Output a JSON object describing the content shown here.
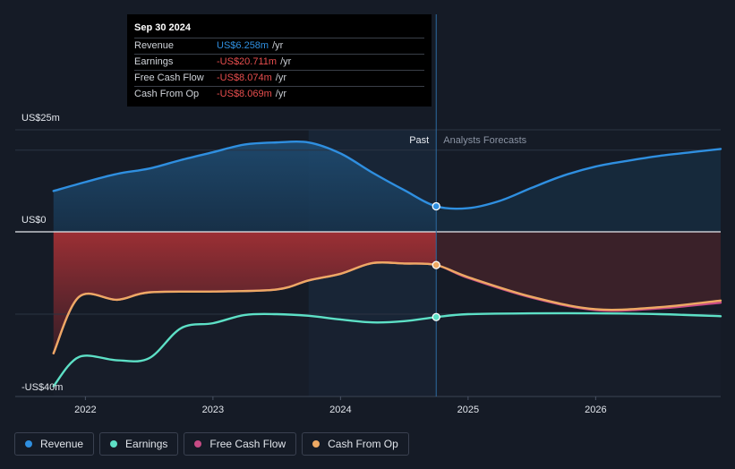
{
  "chart_data": {
    "type": "area",
    "x_range": [
      2021.45,
      2026.98
    ],
    "ylim": [
      -40,
      25
    ],
    "past_boundary": 2024.75,
    "past_shade_start": 2023.75,
    "divider_label_past": "Past",
    "divider_label_forecast": "Analysts Forecasts",
    "y_tick_labels": [
      {
        "value": 25,
        "label": "US$25m"
      },
      {
        "value": 0,
        "label": "US$0"
      },
      {
        "value": -40,
        "label": "-US$40m"
      }
    ],
    "x_ticks": [
      {
        "value": 2022,
        "label": "2022"
      },
      {
        "value": 2023,
        "label": "2023"
      },
      {
        "value": 2024,
        "label": "2024"
      },
      {
        "value": 2025,
        "label": "2025"
      },
      {
        "value": 2026,
        "label": "2026"
      }
    ],
    "series": [
      {
        "name": "Revenue",
        "color": "#2f8fe0",
        "points": [
          [
            2021.75,
            10
          ],
          [
            2022.0,
            12.2
          ],
          [
            2022.25,
            14.2
          ],
          [
            2022.5,
            15.5
          ],
          [
            2022.75,
            17.6
          ],
          [
            2023.0,
            19.5
          ],
          [
            2023.25,
            21.4
          ],
          [
            2023.5,
            21.9
          ],
          [
            2023.75,
            21.9
          ],
          [
            2024.0,
            19.2
          ],
          [
            2024.25,
            14.5
          ],
          [
            2024.5,
            10.2
          ],
          [
            2024.75,
            6.258
          ],
          [
            2025.0,
            5.8
          ],
          [
            2025.25,
            7.6
          ],
          [
            2025.5,
            10.8
          ],
          [
            2025.75,
            13.8
          ],
          [
            2026.0,
            16.0
          ],
          [
            2026.25,
            17.4
          ],
          [
            2026.5,
            18.6
          ],
          [
            2026.75,
            19.5
          ],
          [
            2026.98,
            20.3
          ]
        ]
      },
      {
        "name": "Earnings",
        "color": "#5de0c6",
        "points": [
          [
            2021.75,
            -37.5
          ],
          [
            2021.95,
            -30.4
          ],
          [
            2022.25,
            -31.2
          ],
          [
            2022.5,
            -30.7
          ],
          [
            2022.75,
            -23.4
          ],
          [
            2023.0,
            -22.2
          ],
          [
            2023.25,
            -20.2
          ],
          [
            2023.5,
            -20.0
          ],
          [
            2023.75,
            -20.4
          ],
          [
            2024.0,
            -21.3
          ],
          [
            2024.25,
            -22.0
          ],
          [
            2024.5,
            -21.7
          ],
          [
            2024.75,
            -20.711
          ],
          [
            2025.0,
            -20.0
          ],
          [
            2025.5,
            -19.8
          ],
          [
            2026.0,
            -19.8
          ],
          [
            2026.5,
            -20.0
          ],
          [
            2026.98,
            -20.5
          ]
        ]
      },
      {
        "name": "Free Cash Flow",
        "color": "#c74b85",
        "points": [
          [
            2021.75,
            -29.5
          ],
          [
            2021.95,
            -15.8
          ],
          [
            2022.25,
            -16.5
          ],
          [
            2022.5,
            -14.7
          ],
          [
            2023.0,
            -14.5
          ],
          [
            2023.5,
            -14.0
          ],
          [
            2023.75,
            -11.8
          ],
          [
            2024.0,
            -10.2
          ],
          [
            2024.25,
            -7.6
          ],
          [
            2024.5,
            -7.7
          ],
          [
            2024.75,
            -8.074
          ],
          [
            2025.0,
            -11.2
          ],
          [
            2025.5,
            -16.0
          ],
          [
            2026.0,
            -19.0
          ],
          [
            2026.5,
            -18.6
          ],
          [
            2026.98,
            -17.2
          ]
        ]
      },
      {
        "name": "Cash From Op",
        "color": "#eda964",
        "points": [
          [
            2021.75,
            -29.5
          ],
          [
            2021.95,
            -15.8
          ],
          [
            2022.25,
            -16.5
          ],
          [
            2022.5,
            -14.7
          ],
          [
            2023.0,
            -14.5
          ],
          [
            2023.5,
            -14.0
          ],
          [
            2023.75,
            -11.8
          ],
          [
            2024.0,
            -10.2
          ],
          [
            2024.25,
            -7.6
          ],
          [
            2024.5,
            -7.7
          ],
          [
            2024.75,
            -8.069
          ],
          [
            2025.0,
            -11.0
          ],
          [
            2025.5,
            -15.8
          ],
          [
            2026.0,
            -18.8
          ],
          [
            2026.5,
            -18.3
          ],
          [
            2026.98,
            -16.7
          ]
        ]
      }
    ],
    "markers": [
      {
        "series": "Revenue",
        "x": 2024.75,
        "y": 6.258
      },
      {
        "series": "Earnings",
        "x": 2024.75,
        "y": -20.711
      },
      {
        "series": "Cash From Op",
        "x": 2024.75,
        "y": -8.069
      }
    ]
  },
  "tooltip": {
    "date": "Sep 30 2024",
    "rows": [
      {
        "label": "Revenue",
        "value": "US$6.258m",
        "unit": "/yr",
        "color": "#2f8fe0"
      },
      {
        "label": "Earnings",
        "value": "-US$20.711m",
        "unit": "/yr",
        "color": "#e84e4e"
      },
      {
        "label": "Free Cash Flow",
        "value": "-US$8.074m",
        "unit": "/yr",
        "color": "#e84e4e"
      },
      {
        "label": "Cash From Op",
        "value": "-US$8.069m",
        "unit": "/yr",
        "color": "#e84e4e"
      }
    ]
  },
  "legend": [
    {
      "label": "Revenue",
      "color": "#2f8fe0"
    },
    {
      "label": "Earnings",
      "color": "#5de0c6"
    },
    {
      "label": "Free Cash Flow",
      "color": "#c74b85"
    },
    {
      "label": "Cash From Op",
      "color": "#eda964"
    }
  ]
}
